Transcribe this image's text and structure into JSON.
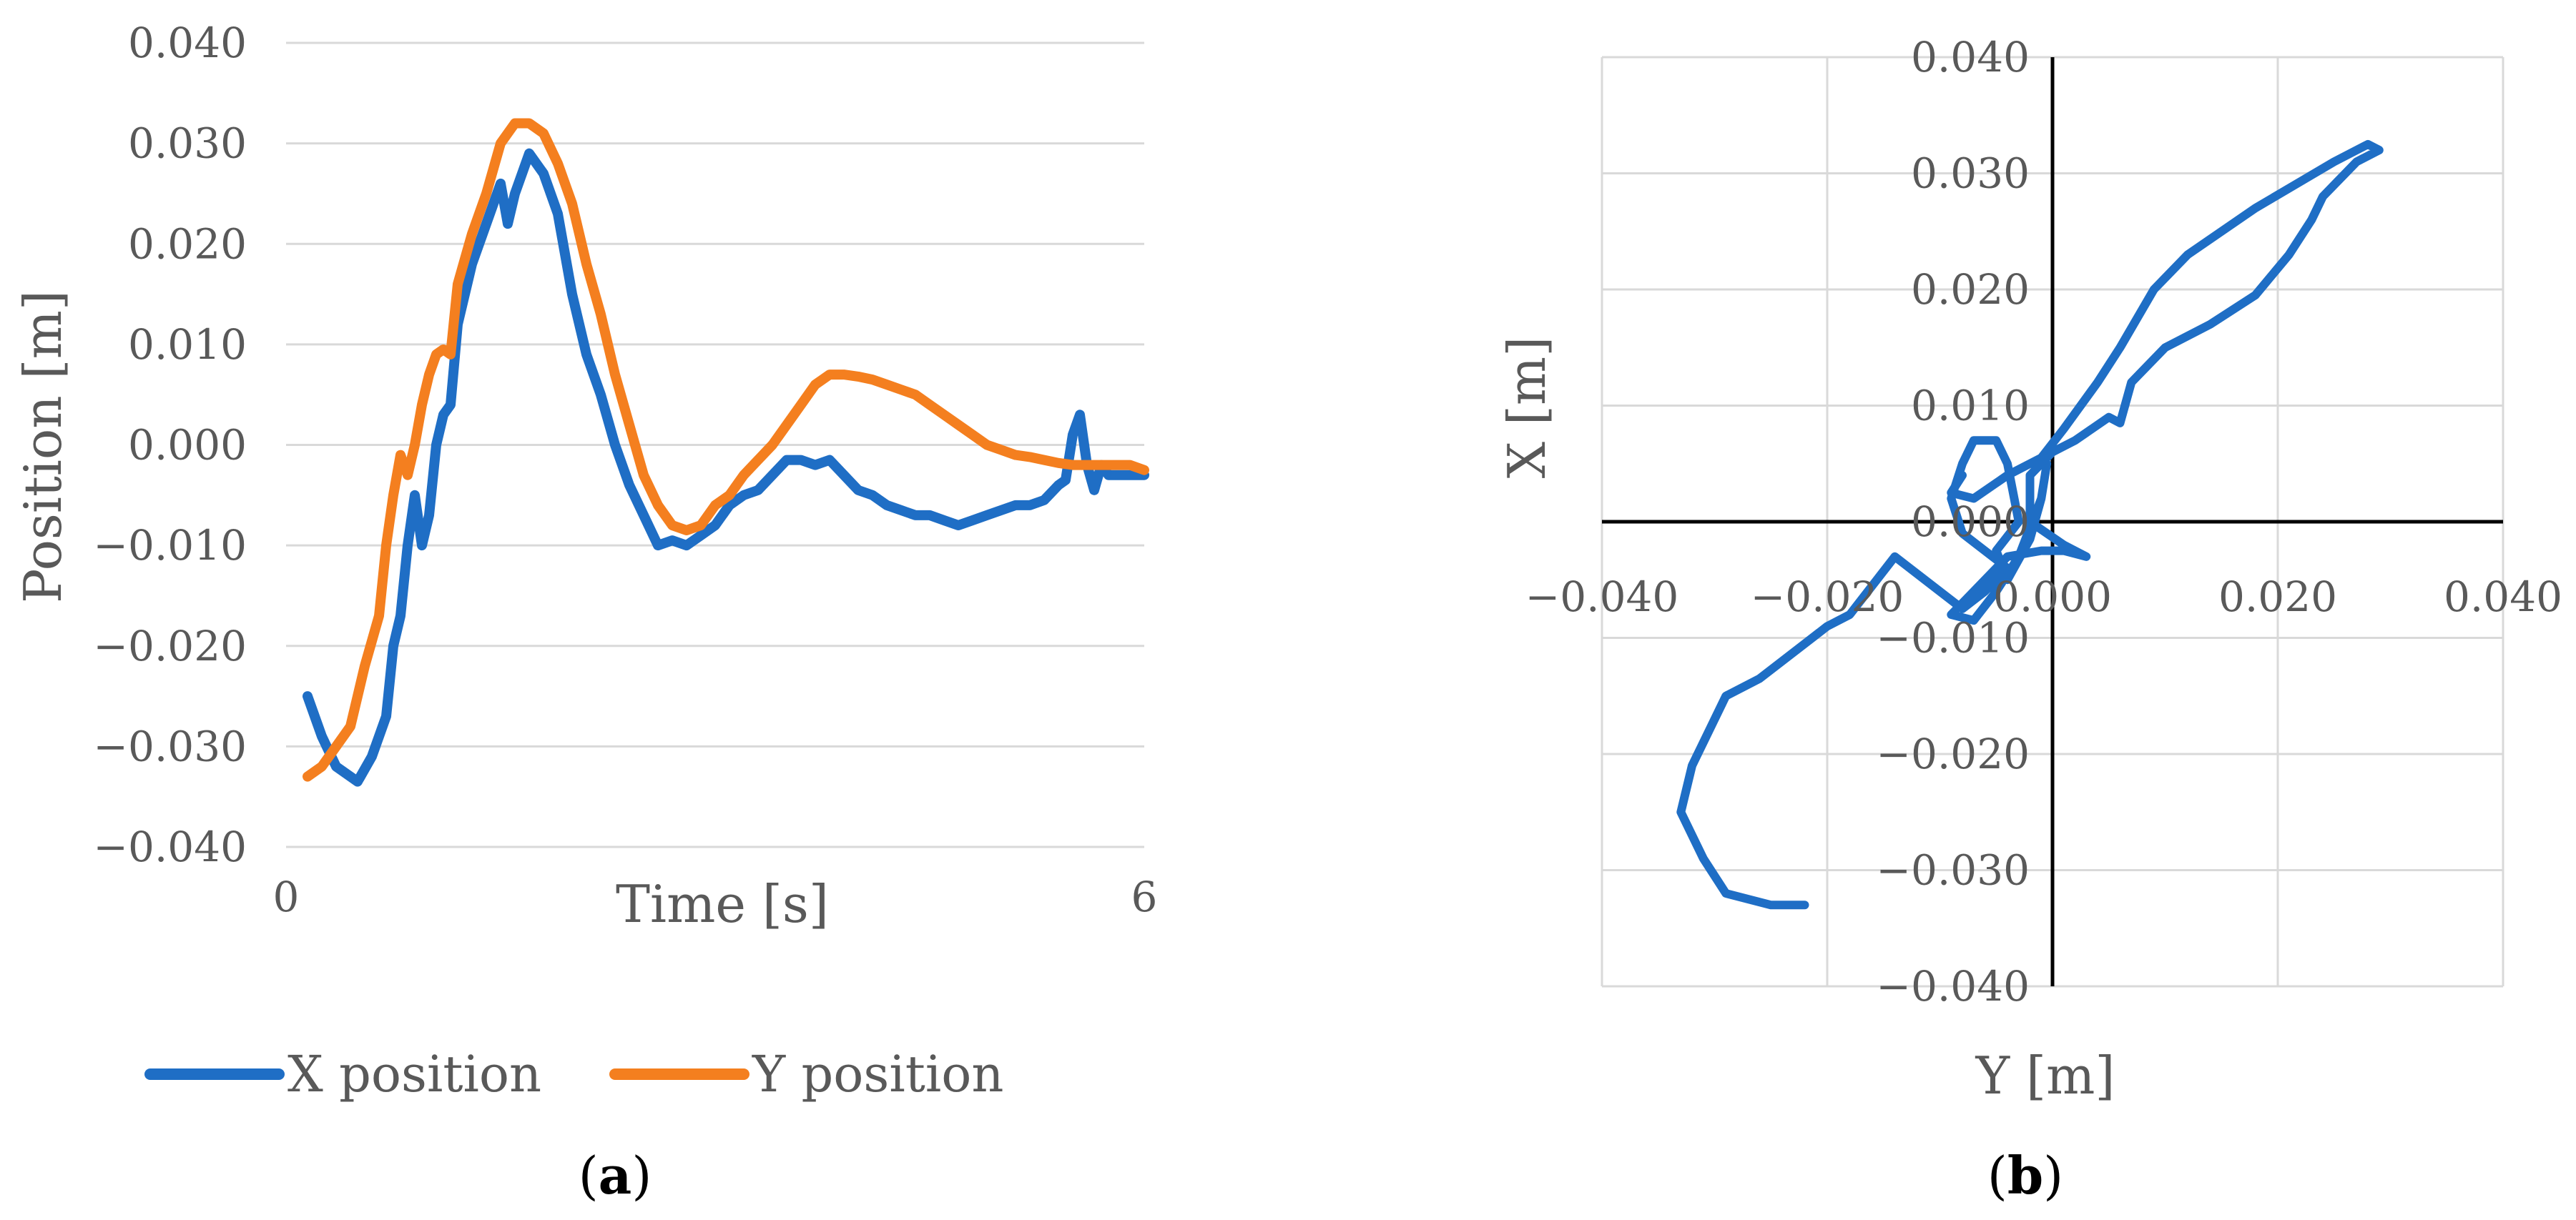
{
  "chart_data": [
    {
      "panel_label": "a",
      "type": "line",
      "xlabel": "Time [s]",
      "ylabel": "Position [m]",
      "xlim": [
        0,
        6
      ],
      "ylim": [
        -0.04,
        0.04
      ],
      "x_ticks": [
        "0",
        "6"
      ],
      "y_ticks": [
        "0.040",
        "0.030",
        "0.020",
        "0.010",
        "0.000",
        "−0.010",
        "−0.020",
        "−0.030",
        "−0.040"
      ],
      "grid": "horizontal",
      "legend": "bottom",
      "series": [
        {
          "name": "X position",
          "color": "#1f6ec5",
          "points": [
            [
              0.15,
              -0.025
            ],
            [
              0.25,
              -0.029
            ],
            [
              0.35,
              -0.032
            ],
            [
              0.5,
              -0.0335
            ],
            [
              0.6,
              -0.031
            ],
            [
              0.7,
              -0.027
            ],
            [
              0.75,
              -0.02
            ],
            [
              0.8,
              -0.017
            ],
            [
              0.85,
              -0.01
            ],
            [
              0.9,
              -0.005
            ],
            [
              0.95,
              -0.01
            ],
            [
              1.0,
              -0.007
            ],
            [
              1.05,
              0.0
            ],
            [
              1.1,
              0.003
            ],
            [
              1.15,
              0.004
            ],
            [
              1.2,
              0.012
            ],
            [
              1.3,
              0.018
            ],
            [
              1.4,
              0.022
            ],
            [
              1.5,
              0.026
            ],
            [
              1.55,
              0.022
            ],
            [
              1.6,
              0.025
            ],
            [
              1.7,
              0.029
            ],
            [
              1.8,
              0.027
            ],
            [
              1.9,
              0.023
            ],
            [
              2.0,
              0.015
            ],
            [
              2.1,
              0.009
            ],
            [
              2.2,
              0.005
            ],
            [
              2.3,
              0.0
            ],
            [
              2.4,
              -0.004
            ],
            [
              2.5,
              -0.007
            ],
            [
              2.6,
              -0.01
            ],
            [
              2.7,
              -0.0095
            ],
            [
              2.8,
              -0.01
            ],
            [
              2.9,
              -0.009
            ],
            [
              3.0,
              -0.008
            ],
            [
              3.1,
              -0.006
            ],
            [
              3.2,
              -0.005
            ],
            [
              3.3,
              -0.0045
            ],
            [
              3.4,
              -0.003
            ],
            [
              3.5,
              -0.0015
            ],
            [
              3.6,
              -0.0015
            ],
            [
              3.7,
              -0.002
            ],
            [
              3.8,
              -0.0015
            ],
            [
              3.9,
              -0.003
            ],
            [
              4.0,
              -0.0045
            ],
            [
              4.1,
              -0.005
            ],
            [
              4.2,
              -0.006
            ],
            [
              4.3,
              -0.0065
            ],
            [
              4.4,
              -0.007
            ],
            [
              4.5,
              -0.007
            ],
            [
              4.6,
              -0.0075
            ],
            [
              4.7,
              -0.008
            ],
            [
              4.8,
              -0.0075
            ],
            [
              4.9,
              -0.007
            ],
            [
              5.0,
              -0.0065
            ],
            [
              5.1,
              -0.006
            ],
            [
              5.2,
              -0.006
            ],
            [
              5.3,
              -0.0055
            ],
            [
              5.4,
              -0.004
            ],
            [
              5.45,
              -0.0035
            ],
            [
              5.5,
              0.001
            ],
            [
              5.55,
              0.003
            ],
            [
              5.6,
              -0.002
            ],
            [
              5.65,
              -0.0045
            ],
            [
              5.7,
              -0.002
            ],
            [
              5.75,
              -0.003
            ],
            [
              5.8,
              -0.003
            ],
            [
              5.9,
              -0.003
            ],
            [
              6.0,
              -0.003
            ]
          ]
        },
        {
          "name": "Y position",
          "color": "#f47f1f",
          "points": [
            [
              0.15,
              -0.033
            ],
            [
              0.25,
              -0.032
            ],
            [
              0.35,
              -0.03
            ],
            [
              0.45,
              -0.028
            ],
            [
              0.55,
              -0.022
            ],
            [
              0.65,
              -0.017
            ],
            [
              0.7,
              -0.01
            ],
            [
              0.75,
              -0.005
            ],
            [
              0.8,
              -0.001
            ],
            [
              0.85,
              -0.003
            ],
            [
              0.9,
              0.0
            ],
            [
              0.95,
              0.004
            ],
            [
              1.0,
              0.007
            ],
            [
              1.05,
              0.009
            ],
            [
              1.1,
              0.0095
            ],
            [
              1.15,
              0.009
            ],
            [
              1.2,
              0.016
            ],
            [
              1.3,
              0.021
            ],
            [
              1.4,
              0.025
            ],
            [
              1.5,
              0.03
            ],
            [
              1.6,
              0.032
            ],
            [
              1.7,
              0.032
            ],
            [
              1.8,
              0.031
            ],
            [
              1.9,
              0.028
            ],
            [
              2.0,
              0.024
            ],
            [
              2.1,
              0.018
            ],
            [
              2.2,
              0.013
            ],
            [
              2.3,
              0.007
            ],
            [
              2.4,
              0.002
            ],
            [
              2.5,
              -0.003
            ],
            [
              2.6,
              -0.006
            ],
            [
              2.7,
              -0.008
            ],
            [
              2.8,
              -0.0085
            ],
            [
              2.9,
              -0.008
            ],
            [
              3.0,
              -0.006
            ],
            [
              3.1,
              -0.005
            ],
            [
              3.2,
              -0.003
            ],
            [
              3.3,
              -0.0015
            ],
            [
              3.4,
              0.0
            ],
            [
              3.5,
              0.002
            ],
            [
              3.6,
              0.004
            ],
            [
              3.7,
              0.006
            ],
            [
              3.8,
              0.007
            ],
            [
              3.9,
              0.007
            ],
            [
              4.0,
              0.0068
            ],
            [
              4.1,
              0.0065
            ],
            [
              4.2,
              0.006
            ],
            [
              4.3,
              0.0055
            ],
            [
              4.4,
              0.005
            ],
            [
              4.5,
              0.004
            ],
            [
              4.6,
              0.003
            ],
            [
              4.7,
              0.002
            ],
            [
              4.8,
              0.001
            ],
            [
              4.9,
              0.0
            ],
            [
              5.0,
              -0.0005
            ],
            [
              5.1,
              -0.001
            ],
            [
              5.2,
              -0.0012
            ],
            [
              5.3,
              -0.0015
            ],
            [
              5.4,
              -0.0018
            ],
            [
              5.5,
              -0.002
            ],
            [
              5.6,
              -0.002
            ],
            [
              5.7,
              -0.002
            ],
            [
              5.8,
              -0.002
            ],
            [
              5.9,
              -0.002
            ],
            [
              6.0,
              -0.0025
            ]
          ]
        }
      ]
    },
    {
      "panel_label": "b",
      "type": "scatter",
      "xlabel": "Y [m]",
      "ylabel": "X [m]",
      "xlim": [
        -0.04,
        0.04
      ],
      "ylim": [
        -0.04,
        0.04
      ],
      "x_ticks": [
        "−0.040",
        "−0.020",
        "0.000",
        "0.020",
        "0.040"
      ],
      "y_ticks": [
        "0.040",
        "0.030",
        "0.020",
        "0.010",
        "0.000",
        "−0.010",
        "−0.020",
        "−0.030",
        "−0.040"
      ],
      "grid": "both",
      "series": [
        {
          "color": "#1f6ec5",
          "points": [
            [
              -0.022,
              -0.033
            ],
            [
              -0.025,
              -0.033
            ],
            [
              -0.029,
              -0.032
            ],
            [
              -0.031,
              -0.029
            ],
            [
              -0.033,
              -0.025
            ],
            [
              -0.032,
              -0.021
            ],
            [
              -0.029,
              -0.015
            ],
            [
              -0.026,
              -0.0135
            ],
            [
              -0.02,
              -0.009
            ],
            [
              -0.018,
              -0.008
            ],
            [
              -0.014,
              -0.003
            ],
            [
              -0.012,
              -0.0045
            ],
            [
              -0.01,
              -0.006
            ],
            [
              -0.008,
              -0.0075
            ],
            [
              -0.006,
              -0.006
            ],
            [
              -0.004,
              -0.004
            ],
            [
              -0.008,
              -0.001
            ],
            [
              -0.009,
              0.002
            ],
            [
              -0.008,
              0.005
            ],
            [
              -0.007,
              0.007
            ],
            [
              -0.005,
              0.007
            ],
            [
              -0.004,
              0.005
            ],
            [
              -0.003,
              0.0
            ],
            [
              -0.005,
              -0.0025
            ],
            [
              -0.004,
              -0.005
            ],
            [
              -0.002,
              -0.0015
            ],
            [
              -0.001,
              0.002
            ],
            [
              -0.0005,
              0.005
            ],
            [
              -0.001,
              0.002
            ],
            [
              -0.003,
              -0.003
            ],
            [
              -0.005,
              -0.006
            ],
            [
              -0.007,
              -0.0085
            ],
            [
              -0.009,
              -0.008
            ],
            [
              -0.007,
              -0.006
            ],
            [
              -0.004,
              -0.003
            ],
            [
              -0.001,
              -0.0025
            ],
            [
              0.001,
              -0.0025
            ],
            [
              0.003,
              -0.003
            ],
            [
              0.001,
              -0.002
            ],
            [
              -0.002,
              0.0
            ],
            [
              -0.002,
              0.004
            ],
            [
              0.0,
              0.006
            ],
            [
              0.002,
              0.007
            ],
            [
              0.005,
              0.009
            ],
            [
              0.006,
              0.0085
            ],
            [
              0.007,
              0.012
            ],
            [
              0.01,
              0.015
            ],
            [
              0.014,
              0.017
            ],
            [
              0.018,
              0.0195
            ],
            [
              0.021,
              0.023
            ],
            [
              0.023,
              0.026
            ],
            [
              0.024,
              0.028
            ],
            [
              0.027,
              0.031
            ],
            [
              0.029,
              0.032
            ],
            [
              0.028,
              0.0325
            ],
            [
              0.025,
              0.031
            ],
            [
              0.018,
              0.027
            ],
            [
              0.012,
              0.023
            ],
            [
              0.009,
              0.02
            ],
            [
              0.006,
              0.015
            ],
            [
              0.004,
              0.012
            ],
            [
              0.0025,
              0.01
            ],
            [
              0.001,
              0.008
            ],
            [
              -0.001,
              0.0055
            ],
            [
              -0.004,
              0.004
            ],
            [
              -0.007,
              0.002
            ],
            [
              -0.009,
              0.0025
            ],
            [
              -0.008,
              0.004
            ]
          ]
        }
      ]
    }
  ],
  "legend": {
    "x_label": "X position",
    "y_label": "Y position"
  },
  "captions": {
    "a_open": "(",
    "a_letter": "a",
    "a_close": ")",
    "b_open": "(",
    "b_letter": "b",
    "b_close": ")"
  }
}
